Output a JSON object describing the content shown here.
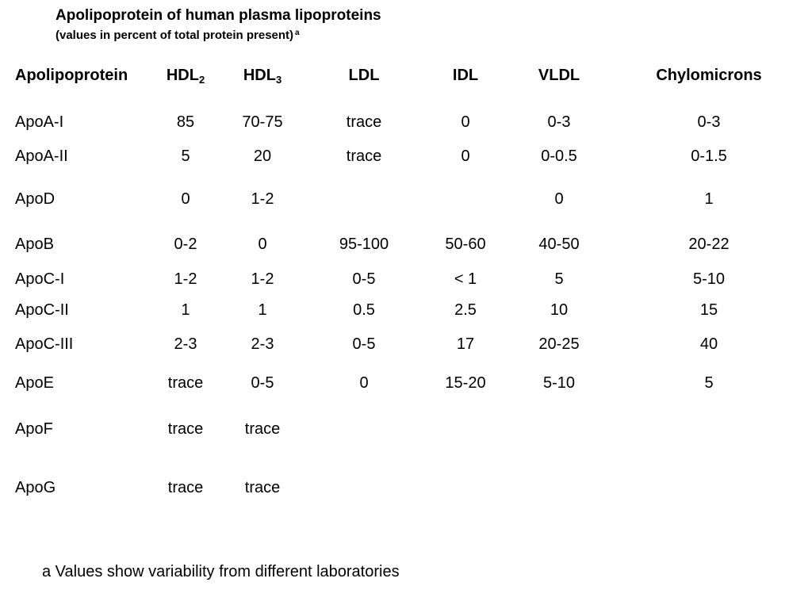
{
  "title": "Apolipoprotein of human plasma lipoproteins",
  "subtitle": {
    "text": "(values in percent of total protein present)",
    "marker": "a"
  },
  "table": {
    "headers": [
      {
        "text": "Apolipoprotein",
        "sub": ""
      },
      {
        "text": "HDL",
        "sub": "2"
      },
      {
        "text": "HDL",
        "sub": "3"
      },
      {
        "text": "LDL",
        "sub": ""
      },
      {
        "text": "IDL",
        "sub": ""
      },
      {
        "text": "VLDL",
        "sub": ""
      },
      {
        "text": "Chylomicrons",
        "sub": ""
      }
    ],
    "rows": [
      [
        "ApoA-I",
        "85",
        "70-75",
        "trace",
        "0",
        "0-3",
        "0-3"
      ],
      [
        "ApoA-II",
        "5",
        "20",
        "trace",
        "0",
        "0-0.5",
        "0-1.5"
      ],
      [
        "ApoD",
        "0",
        "1-2",
        "",
        "",
        "0",
        "1"
      ],
      [
        "ApoB",
        "0-2",
        "0",
        "95-100",
        "50-60",
        "40-50",
        "20-22"
      ],
      [
        "ApoC-I",
        "1-2",
        "1-2",
        "0-5",
        "< 1",
        "5",
        "5-10"
      ],
      [
        "ApoC-II",
        "1",
        "1",
        "0.5",
        "2.5",
        "10",
        "15"
      ],
      [
        "ApoC-III",
        "2-3",
        "2-3",
        "0-5",
        "17",
        "20-25",
        "40"
      ],
      [
        "ApoE",
        "trace",
        "0-5",
        "0",
        "15-20",
        "5-10",
        "5"
      ],
      [
        "ApoF",
        "trace",
        "trace",
        "",
        "",
        "",
        ""
      ],
      [
        "ApoG",
        "trace",
        "trace",
        "",
        "",
        "",
        ""
      ]
    ]
  },
  "footnote": "a Values show variability from different laboratories"
}
